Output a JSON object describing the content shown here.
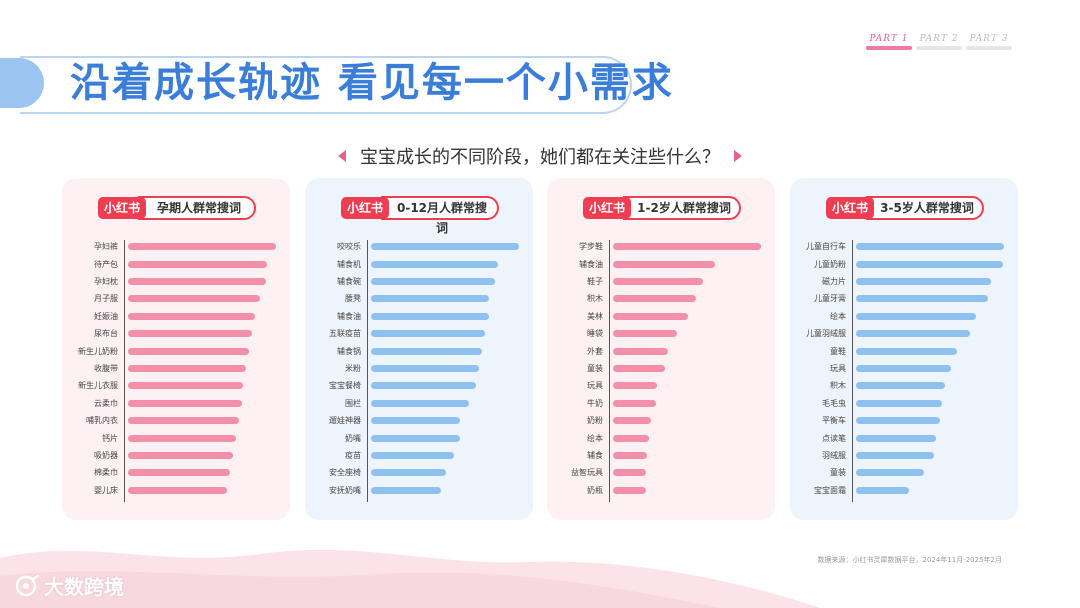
{
  "header": {
    "title": "沿着成长轨迹 看见每一个小需求",
    "parts": [
      "PART 1",
      "PART 2",
      "PART 3"
    ],
    "active_part": 0
  },
  "subtitle": "宝宝成长的不同阶段，她们都在关注些什么？",
  "logo_text": "小红书",
  "colors": {
    "pink": "#f28fab",
    "blue": "#8ec1ef",
    "title": "#3a7ed9",
    "accent": "#ef3d51"
  },
  "chart_data": [
    {
      "type": "bar",
      "orientation": "horizontal",
      "title": "孕期人群常搜词",
      "categories": [
        "孕妇裤",
        "待产包",
        "孕妇枕",
        "月子服",
        "妊娠油",
        "尿布台",
        "新生儿奶粉",
        "收腹带",
        "新生儿衣服",
        "云柔巾",
        "哺乳内衣",
        "钙片",
        "吸奶器",
        "棉柔巾",
        "婴儿床"
      ],
      "values": [
        100,
        94,
        93,
        89,
        86,
        84,
        82,
        80,
        78,
        77,
        75,
        73,
        71,
        69,
        67
      ],
      "color": "pink"
    },
    {
      "type": "bar",
      "orientation": "horizontal",
      "title": "0-12月人群常搜词",
      "categories": [
        "咬咬乐",
        "辅食机",
        "辅食碗",
        "腰凳",
        "辅食油",
        "五联疫苗",
        "辅食锅",
        "米粉",
        "宝宝餐椅",
        "围栏",
        "遛娃神器",
        "奶嘴",
        "疫苗",
        "安全座椅",
        "安抚奶嘴"
      ],
      "values": [
        100,
        86,
        84,
        80,
        80,
        77,
        75,
        73,
        71,
        66,
        60,
        60,
        56,
        51,
        47
      ],
      "color": "blue"
    },
    {
      "type": "bar",
      "orientation": "horizontal",
      "title": "1-2岁人群常搜词",
      "categories": [
        "学步鞋",
        "辅食油",
        "鞋子",
        "积木",
        "美林",
        "睡袋",
        "外套",
        "童装",
        "玩具",
        "牛奶",
        "奶粉",
        "绘本",
        "辅食",
        "益智玩具",
        "奶瓶"
      ],
      "values": [
        100,
        69,
        61,
        56,
        51,
        43,
        37,
        35,
        30,
        29,
        26,
        24,
        23,
        22,
        22
      ],
      "color": "pink"
    },
    {
      "type": "bar",
      "orientation": "horizontal",
      "title": "3-5岁人群常搜词",
      "categories": [
        "儿童自行车",
        "儿童奶粉",
        "磁力片",
        "儿童牙膏",
        "绘本",
        "儿童羽绒服",
        "童鞋",
        "玩具",
        "积木",
        "毛毛虫",
        "平衡车",
        "点读笔",
        "羽绒服",
        "童装",
        "宝宝面霜"
      ],
      "values": [
        100,
        99,
        91,
        89,
        81,
        77,
        68,
        64,
        60,
        58,
        57,
        54,
        53,
        46,
        36
      ],
      "color": "blue"
    }
  ],
  "footnote": "数据来源：小红书灵犀数据平台，2024年11月-2025年2月",
  "brand": "大数跨境"
}
